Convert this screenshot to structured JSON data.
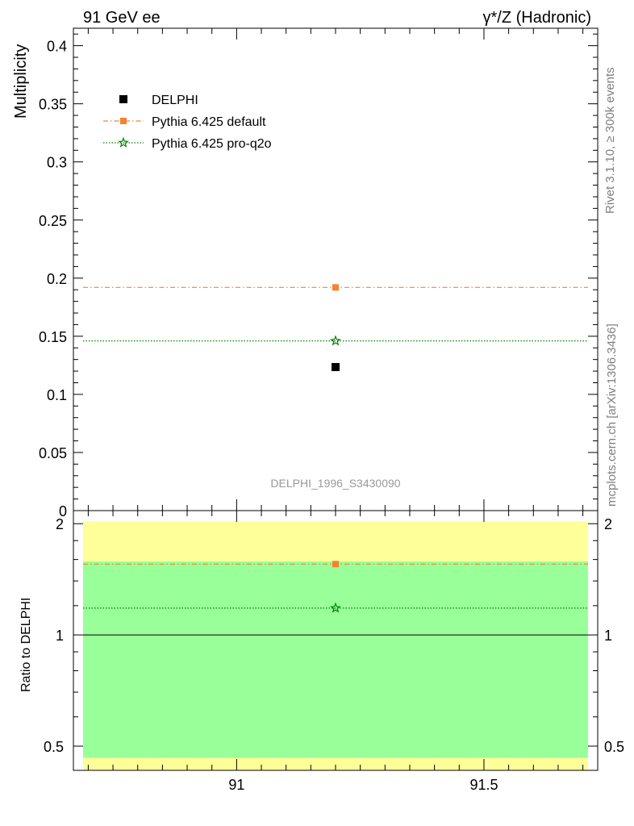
{
  "chart_data": [
    {
      "type": "scatter",
      "panel": "main",
      "title_left": "91 GeV ee",
      "title_right": "γ*/Z (Hadronic)",
      "ylabel": "Multiplicity",
      "xlim": [
        90.67,
        91.73
      ],
      "ylim": [
        0,
        0.415
      ],
      "y_ticks": [
        0,
        0.05,
        0.1,
        0.15,
        0.2,
        0.25,
        0.3,
        0.35,
        0.4
      ],
      "y_tick_labels": [
        "0",
        "0.05",
        "0.1",
        "0.15",
        "0.2",
        "0.25",
        "0.3",
        "0.35",
        "0.4"
      ],
      "legend_position": "top-left",
      "analysis_label": "DELPHI_1996_S3430090",
      "series": [
        {
          "name": "DELPHI",
          "marker": "square",
          "color": "#000000",
          "points": [
            {
              "x": 91.2,
              "y": 0.1235
            }
          ]
        },
        {
          "name": "Pythia 6.425 default",
          "marker": "square",
          "color": "#f58231",
          "line": "dash-dot",
          "points": [
            {
              "x": 91.2,
              "y": 0.192
            }
          ]
        },
        {
          "name": "Pythia 6.425 pro-q2o",
          "marker": "star",
          "color": "#008000",
          "line": "dotted",
          "points": [
            {
              "x": 91.2,
              "y": 0.146
            }
          ]
        }
      ]
    },
    {
      "type": "scatter",
      "panel": "ratio",
      "ylabel": "Ratio to DELPHI",
      "xlim": [
        90.67,
        91.73
      ],
      "ylim": [
        0.43,
        2.17
      ],
      "y_scale": "log",
      "x_ticks": [
        91,
        91.5
      ],
      "x_tick_labels": [
        "91",
        "91.5"
      ],
      "y_ticks": [
        0.5,
        1,
        2
      ],
      "y_tick_labels": [
        "0.5",
        "1",
        "2"
      ],
      "reference_line": 1,
      "bands": [
        {
          "kind": "total-uncertainty",
          "color": "#ffff99",
          "low": 0.465,
          "high": 2.03
        },
        {
          "kind": "statistical-uncertainty",
          "color": "#99ff99",
          "low": 0.465,
          "high": 1.58
        }
      ],
      "series": [
        {
          "name": "Pythia 6.425 default",
          "marker": "square",
          "color": "#f58231",
          "line": "dash-dot",
          "points": [
            {
              "x": 91.2,
              "y": 1.555
            }
          ]
        },
        {
          "name": "Pythia 6.425 pro-q2o",
          "marker": "star",
          "color": "#008000",
          "line": "dotted",
          "points": [
            {
              "x": 91.2,
              "y": 1.182
            }
          ]
        }
      ]
    }
  ],
  "side_labels": {
    "rivet": "Rivet 3.1.10, ≥ 300k events",
    "mcplots": "mcplots.cern.ch [arXiv:1306.3436]"
  }
}
